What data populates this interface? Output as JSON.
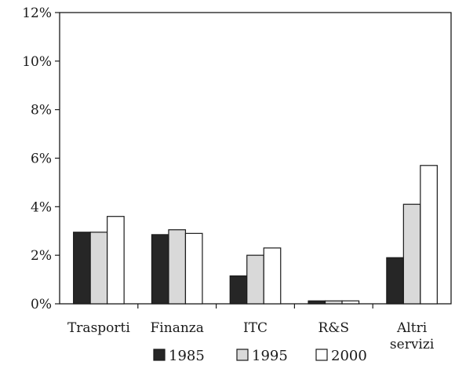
{
  "chart_data": {
    "type": "bar",
    "title": "",
    "xlabel": "",
    "ylabel": "",
    "categories": [
      [
        "Trasporti"
      ],
      [
        "Finanza"
      ],
      [
        "ITC"
      ],
      [
        "R&S"
      ],
      [
        "Altri",
        "servizi"
      ]
    ],
    "series": [
      {
        "name": "1985",
        "color": "#262626",
        "values": [
          2.95,
          2.85,
          1.15,
          0.12,
          1.9
        ]
      },
      {
        "name": "1995",
        "color": "#d9d9d9",
        "values": [
          2.95,
          3.05,
          2.0,
          0.12,
          4.1
        ]
      },
      {
        "name": "2000",
        "color": "#ffffff",
        "values": [
          3.6,
          2.9,
          2.3,
          0.12,
          5.7
        ]
      }
    ],
    "ylim": [
      0,
      12
    ],
    "yticks": [
      0,
      2,
      4,
      6,
      8,
      10,
      12
    ],
    "ytick_labels": [
      "0%",
      "2%",
      "4%",
      "6%",
      "8%",
      "10%",
      "12%"
    ],
    "grid": false,
    "legend": {
      "position": "bottom"
    }
  }
}
